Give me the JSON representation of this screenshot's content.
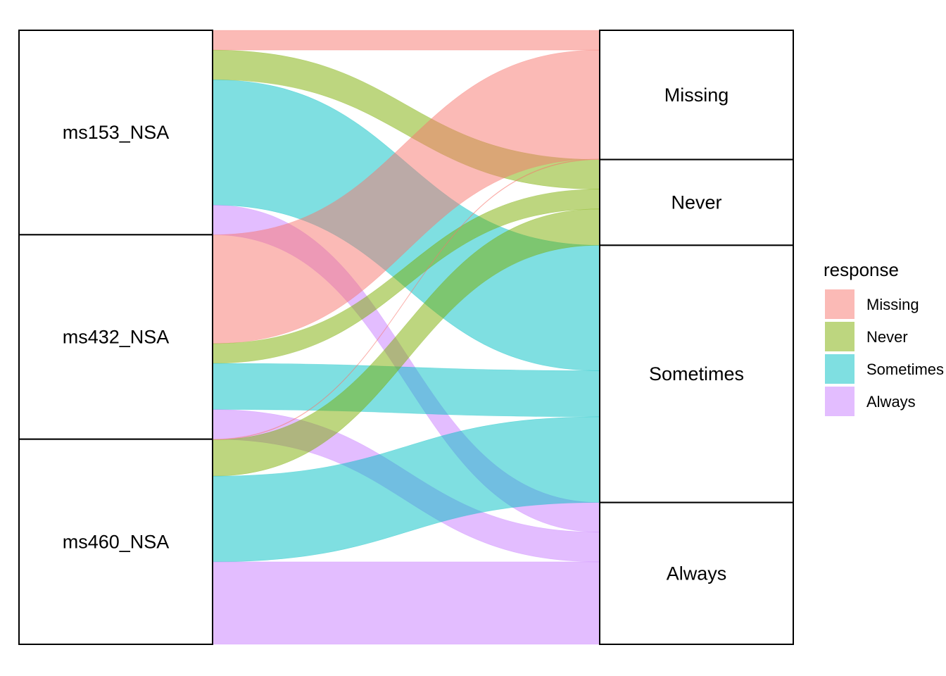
{
  "chart_data": {
    "type": "alluvial",
    "axes": [
      "left",
      "right"
    ],
    "left_strata": [
      "ms153_NSA",
      "ms432_NSA",
      "ms460_NSA"
    ],
    "right_strata": [
      "Missing",
      "Never",
      "Sometimes",
      "Always"
    ],
    "flows": [
      {
        "from": "ms153_NSA",
        "to": "Missing",
        "response": "Missing",
        "value": 3
      },
      {
        "from": "ms153_NSA",
        "to": "Never",
        "response": "Never",
        "value": 4.5
      },
      {
        "from": "ms153_NSA",
        "to": "Sometimes",
        "response": "Sometimes",
        "value": 19
      },
      {
        "from": "ms153_NSA",
        "to": "Always",
        "response": "Always",
        "value": 4.5
      },
      {
        "from": "ms432_NSA",
        "to": "Missing",
        "response": "Missing",
        "value": 16.5
      },
      {
        "from": "ms432_NSA",
        "to": "Never",
        "response": "Never",
        "value": 3
      },
      {
        "from": "ms432_NSA",
        "to": "Sometimes",
        "response": "Sometimes",
        "value": 7
      },
      {
        "from": "ms432_NSA",
        "to": "Always",
        "response": "Always",
        "value": 4.5
      },
      {
        "from": "ms460_NSA",
        "to": "Missing",
        "response": "Missing",
        "value": 0.1
      },
      {
        "from": "ms460_NSA",
        "to": "Never",
        "response": "Never",
        "value": 5.5
      },
      {
        "from": "ms460_NSA",
        "to": "Sometimes",
        "response": "Sometimes",
        "value": 13
      },
      {
        "from": "ms460_NSA",
        "to": "Always",
        "response": "Always",
        "value": 12.5
      }
    ],
    "legend": {
      "title": "response",
      "entries": [
        {
          "label": "Missing",
          "color": "#F8766D"
        },
        {
          "label": "Never",
          "color": "#7CAE00"
        },
        {
          "label": "Sometimes",
          "color": "#00BFC4"
        },
        {
          "label": "Always",
          "color": "#C77CFF"
        }
      ],
      "position": "right"
    },
    "flow_opacity": 0.5,
    "grid": false
  }
}
